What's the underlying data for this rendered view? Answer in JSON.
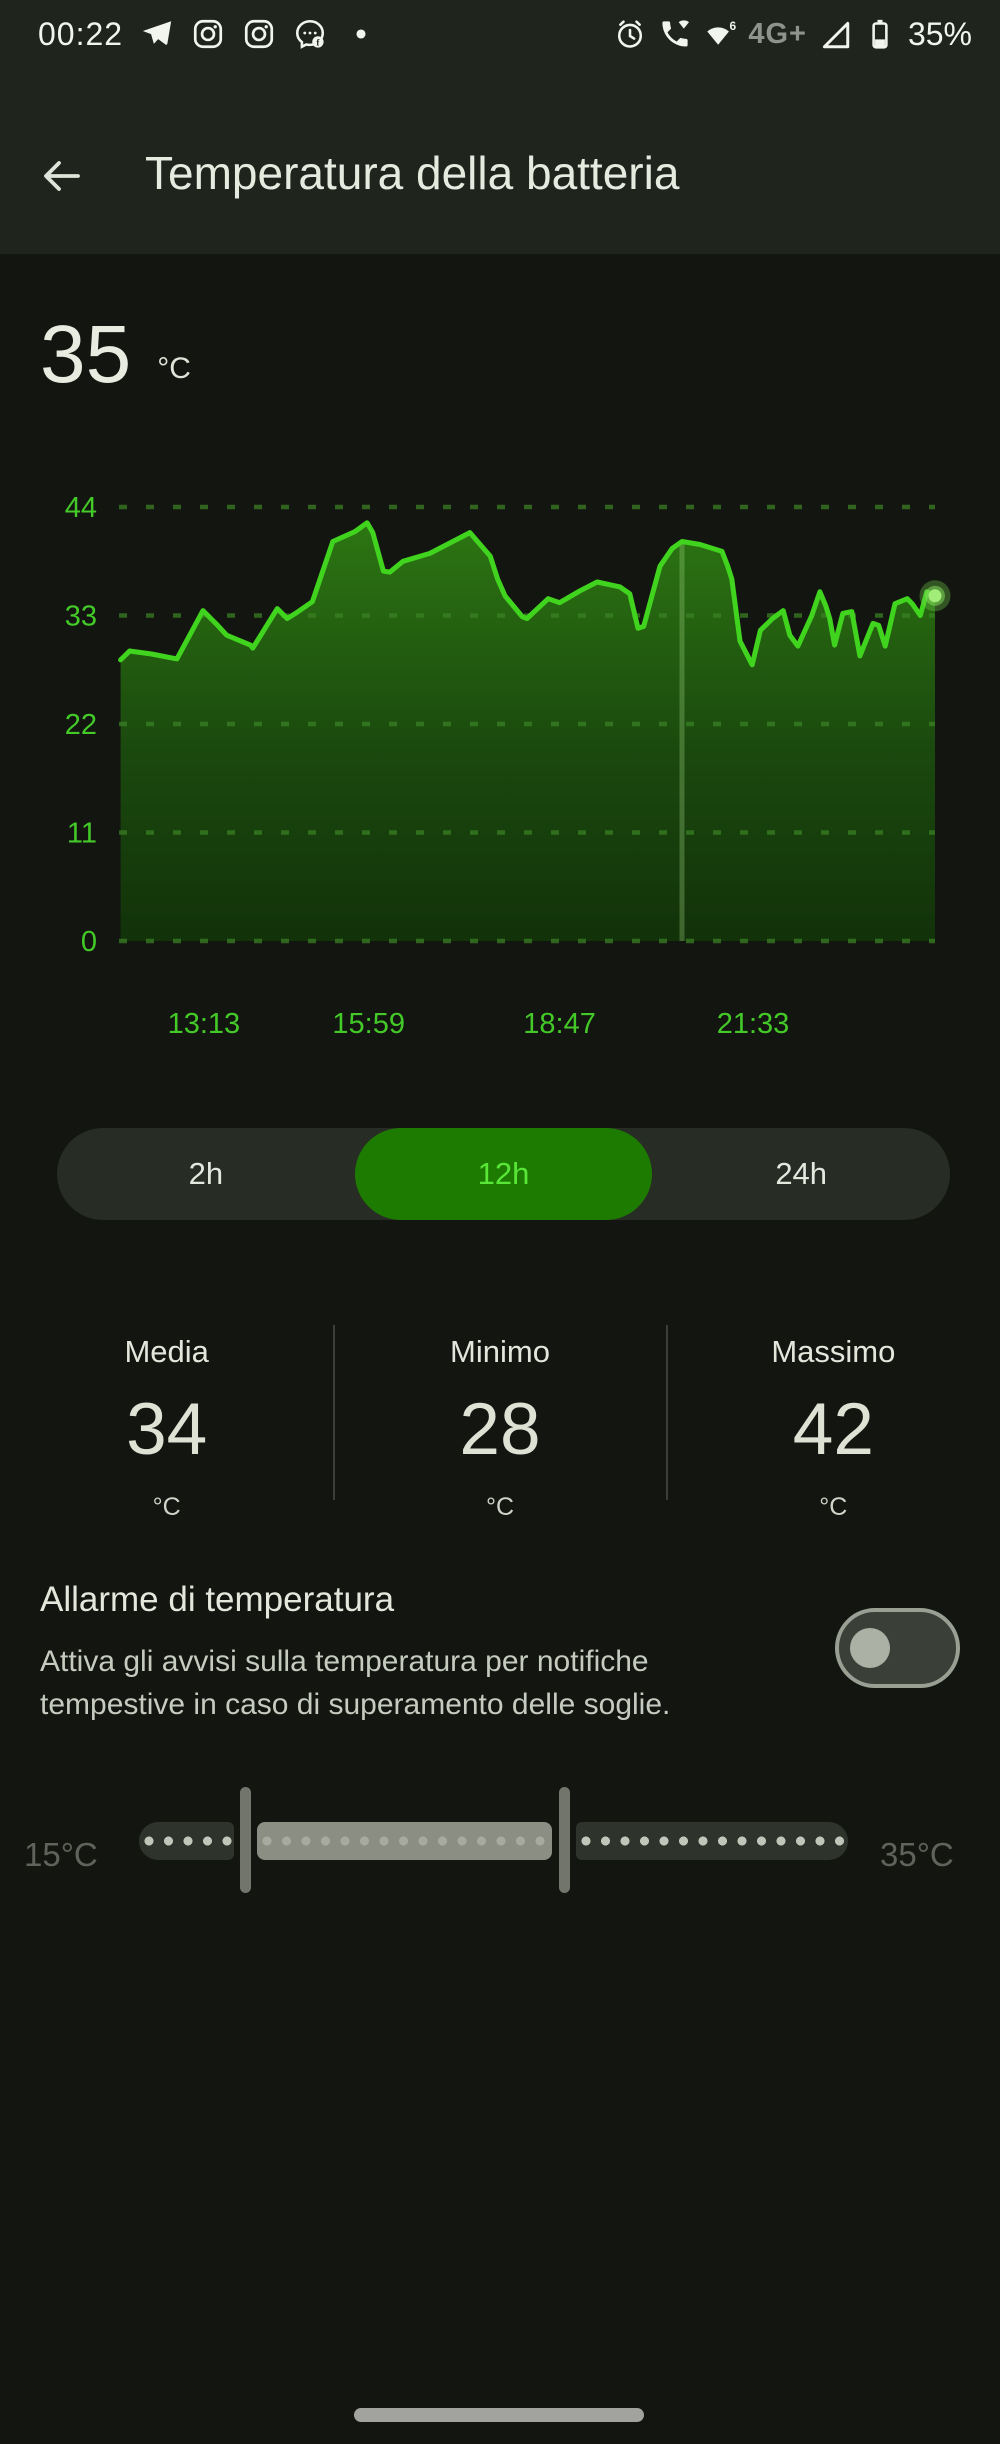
{
  "status_bar": {
    "time": "00:22",
    "icons_left": [
      "telegram",
      "instagram",
      "instagram",
      "messenger",
      "notification-dot"
    ],
    "icons_right": [
      "alarm-clock",
      "wifi-calling",
      "wifi-6",
      "signal-empty",
      "battery"
    ],
    "network": "4G+",
    "battery_percent": "35%"
  },
  "header": {
    "title": "Temperatura della batteria",
    "back_icon": "arrow-left"
  },
  "current": {
    "value": "35",
    "unit": "°C"
  },
  "chart_data": {
    "type": "area",
    "title": "Temperatura della batteria (12h)",
    "ylabel": "°C",
    "ylim": [
      0,
      44
    ],
    "yticks": [
      44,
      33,
      22,
      11,
      0
    ],
    "grid": "dashed-horizontal",
    "legend": "none",
    "x_labels": [
      {
        "text": "13:13",
        "f": 0.104
      },
      {
        "text": "15:59",
        "f": 0.306
      },
      {
        "text": "18:47",
        "f": 0.54
      },
      {
        "text": "21:33",
        "f": 0.777
      }
    ],
    "line_color": "#40d41f",
    "axis_color": "#43c928",
    "fill_gradient": [
      "#2f7d13",
      "#1b4c0e",
      "#123309"
    ],
    "gap_marker": {
      "f": 0.69,
      "top_temp": 40.5
    },
    "end_marker": {
      "f": 1.0,
      "temp": 35,
      "style": "glow-dot"
    },
    "series": [
      {
        "name": "Temperatura",
        "points": [
          [
            0.002,
            28.5
          ],
          [
            0.013,
            29.4
          ],
          [
            0.04,
            29.1
          ],
          [
            0.071,
            28.6
          ],
          [
            0.103,
            33.5
          ],
          [
            0.121,
            32.0
          ],
          [
            0.132,
            31.0
          ],
          [
            0.161,
            30.0
          ],
          [
            0.164,
            29.7
          ],
          [
            0.194,
            33.7
          ],
          [
            0.206,
            32.7
          ],
          [
            0.216,
            33.2
          ],
          [
            0.237,
            34.4
          ],
          [
            0.262,
            40.5
          ],
          [
            0.289,
            41.5
          ],
          [
            0.304,
            42.4
          ],
          [
            0.311,
            41.4
          ],
          [
            0.319,
            39.0
          ],
          [
            0.324,
            37.5
          ],
          [
            0.332,
            37.4
          ],
          [
            0.348,
            38.5
          ],
          [
            0.381,
            39.3
          ],
          [
            0.43,
            41.4
          ],
          [
            0.455,
            39.0
          ],
          [
            0.464,
            36.7
          ],
          [
            0.473,
            35.0
          ],
          [
            0.494,
            32.9
          ],
          [
            0.5,
            32.7
          ],
          [
            0.526,
            34.7
          ],
          [
            0.54,
            34.3
          ],
          [
            0.565,
            35.5
          ],
          [
            0.586,
            36.4
          ],
          [
            0.614,
            35.9
          ],
          [
            0.626,
            35.2
          ],
          [
            0.636,
            31.7
          ],
          [
            0.643,
            31.9
          ],
          [
            0.663,
            38.0
          ],
          [
            0.678,
            39.8
          ],
          [
            0.69,
            40.5
          ],
          [
            0.712,
            40.2
          ],
          [
            0.739,
            39.5
          ],
          [
            0.746,
            38.0
          ],
          [
            0.751,
            36.7
          ],
          [
            0.761,
            30.4
          ],
          [
            0.776,
            28.0
          ],
          [
            0.786,
            31.5
          ],
          [
            0.801,
            32.7
          ],
          [
            0.814,
            33.5
          ],
          [
            0.822,
            31.0
          ],
          [
            0.832,
            29.9
          ],
          [
            0.849,
            33.0
          ],
          [
            0.859,
            35.4
          ],
          [
            0.866,
            34.0
          ],
          [
            0.871,
            32.7
          ],
          [
            0.877,
            30.0
          ],
          [
            0.887,
            33.2
          ],
          [
            0.898,
            33.4
          ],
          [
            0.908,
            28.9
          ],
          [
            0.924,
            32.2
          ],
          [
            0.931,
            32.0
          ],
          [
            0.939,
            29.9
          ],
          [
            0.951,
            34.2
          ],
          [
            0.966,
            34.7
          ],
          [
            0.972,
            34.2
          ],
          [
            0.982,
            33.0
          ],
          [
            0.99,
            35.4
          ],
          [
            1.0,
            35.0
          ]
        ]
      }
    ]
  },
  "range_selector": {
    "options": [
      {
        "label": "2h",
        "selected": false
      },
      {
        "label": "12h",
        "selected": true
      },
      {
        "label": "24h",
        "selected": false
      }
    ],
    "selected_color": "#1e7b02",
    "selected_text_color": "#58e637"
  },
  "stats": {
    "items": [
      {
        "label": "Media",
        "value": "34",
        "unit": "°C"
      },
      {
        "label": "Minimo",
        "value": "28",
        "unit": "°C"
      },
      {
        "label": "Massimo",
        "value": "42",
        "unit": "°C"
      }
    ]
  },
  "alarm": {
    "title": "Allarme di temperatura",
    "description": "Attiva gli avvisi sulla temperatura per notifiche tempestive in caso di superamento delle soglie.",
    "enabled": false
  },
  "slider": {
    "min_label": "15°C",
    "max_label": "35°C",
    "range": [
      15,
      35
    ],
    "low_value": 18,
    "high_value": 27
  }
}
